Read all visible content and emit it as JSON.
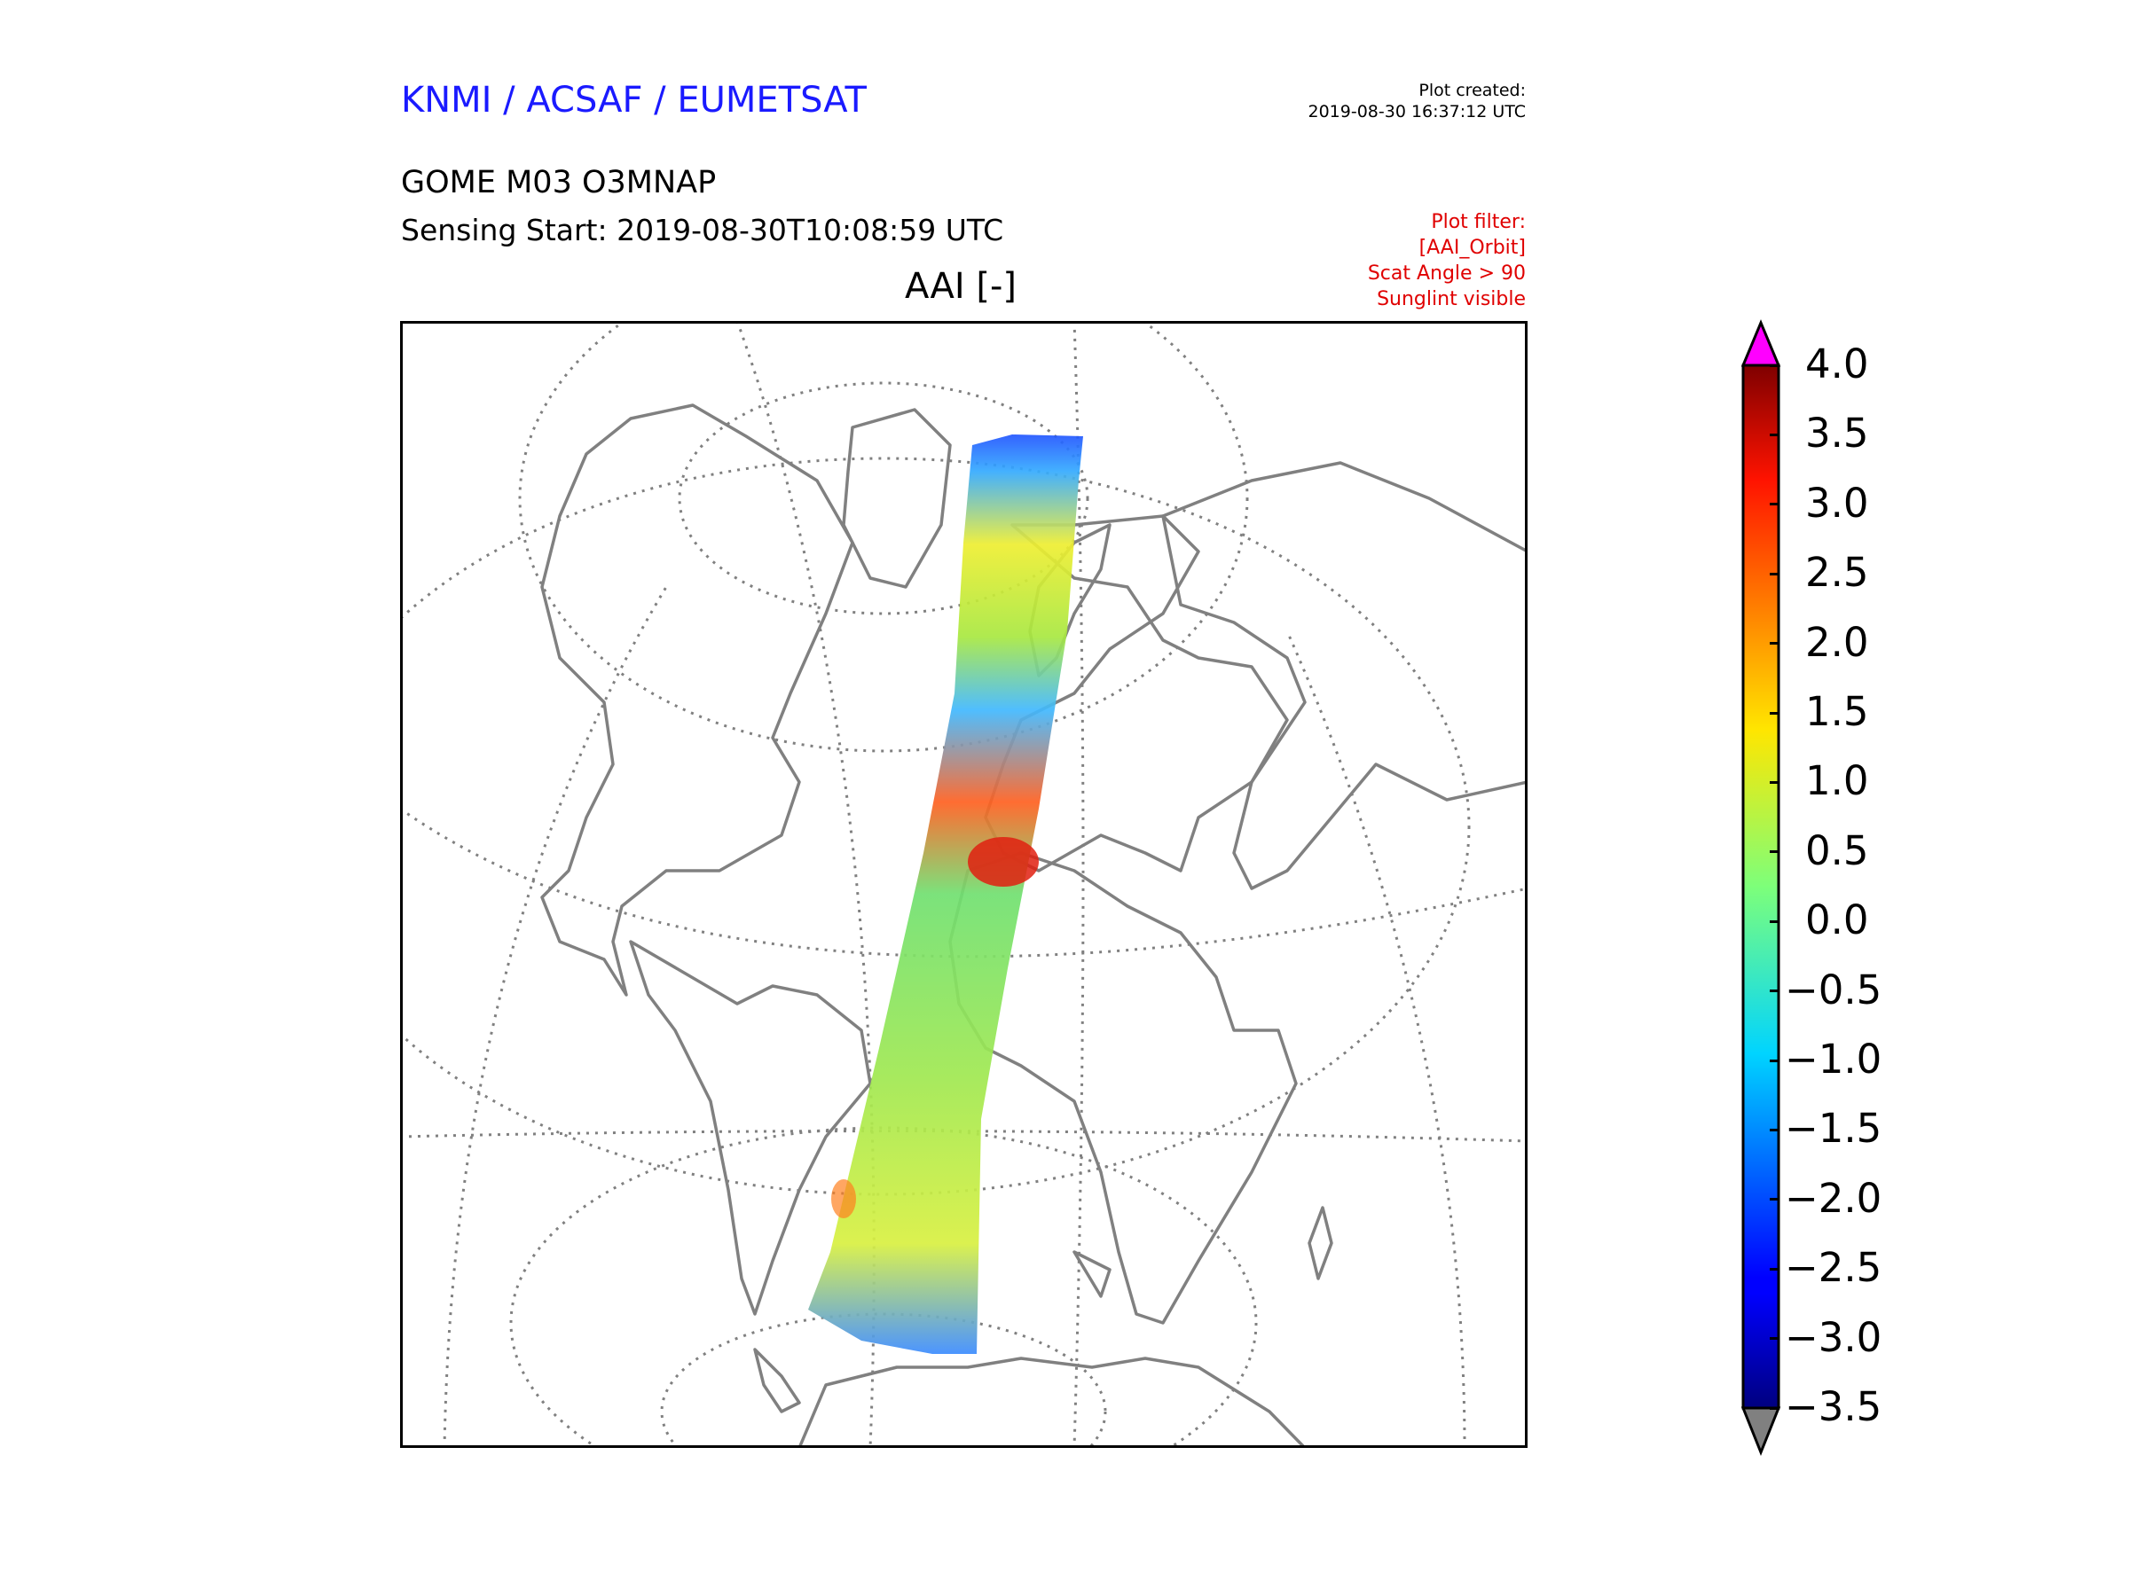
{
  "header": {
    "agency": "KNMI / ACSAF / EUMETSAT",
    "created_label": "Plot created:",
    "created_time": "2019-08-30 16:37:12 UTC",
    "product": "GOME M03 O3MNAP",
    "sensing_start": "Sensing Start: 2019-08-30T10:08:59 UTC",
    "filter_lines": [
      "Plot filter:",
      "[AAI_Orbit]",
      "Scat Angle > 90",
      "Sunglint visible"
    ],
    "variable": "AAI [-]"
  },
  "colors": {
    "agency_text": "#1a1aff",
    "filter_text": "#e00000",
    "coastline": "#808080",
    "graticule": "#808080",
    "over_color": "#ff00ff",
    "under_color": "#808080"
  },
  "colorbar": {
    "min": -3.5,
    "max": 4.0,
    "ticks": [
      "4.0",
      "3.5",
      "3.0",
      "2.5",
      "2.0",
      "1.5",
      "1.0",
      "0.5",
      "0.0",
      "−0.5",
      "−1.0",
      "−1.5",
      "−2.0",
      "−2.5",
      "−3.0",
      "−3.5"
    ],
    "colormap": "jet",
    "extend": "both"
  }
}
